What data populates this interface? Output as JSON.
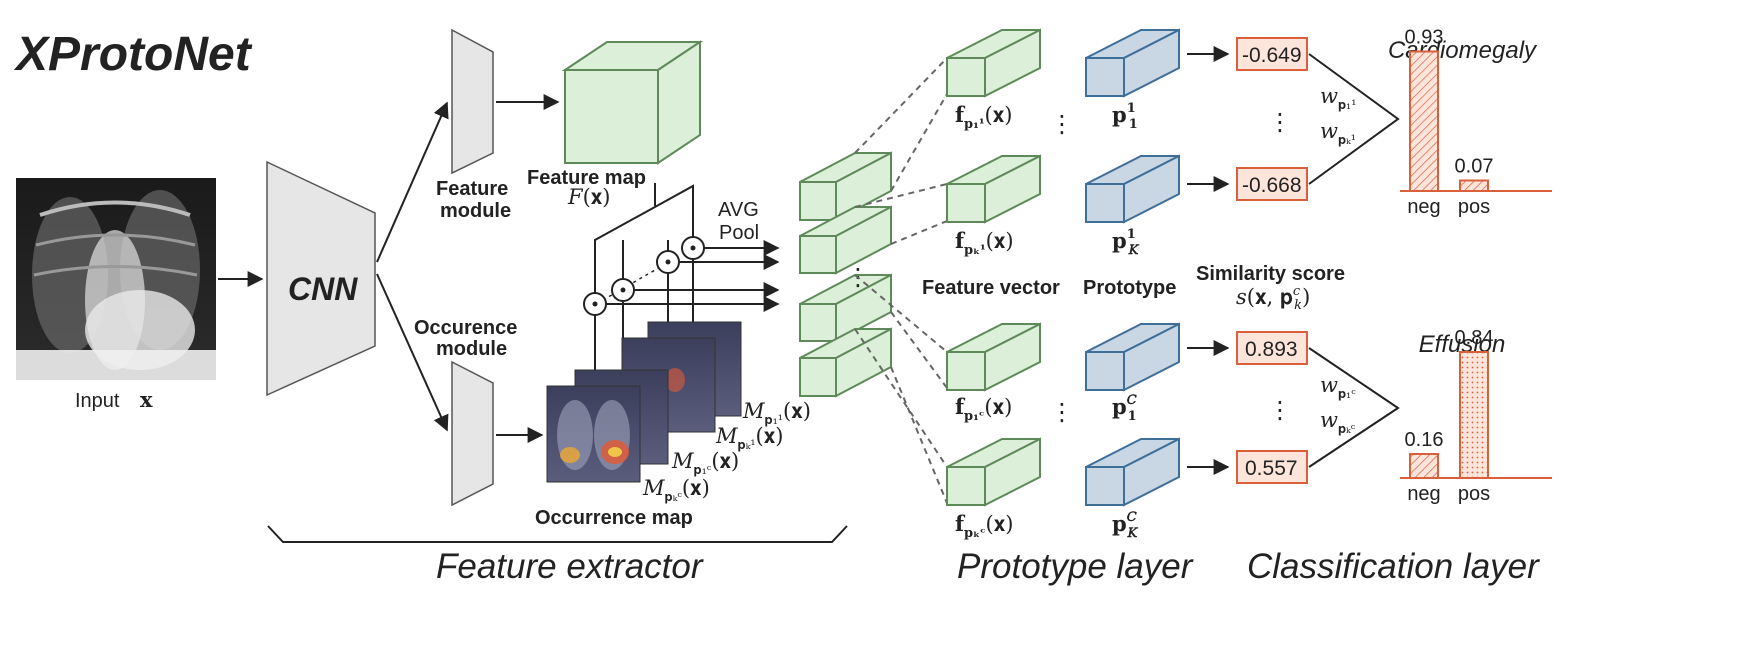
{
  "title": "XProtoNet",
  "input_label": "Input",
  "input_var": "x",
  "cnn_label": "CNN",
  "feature_module": [
    "Feature",
    "module"
  ],
  "occurrence_module": [
    "Occurence",
    "module"
  ],
  "feature_map_label": "Feature map",
  "feature_map_math": "F(x)",
  "avg_pool": [
    "AVG",
    "Pool"
  ],
  "occurrence_map_label": "Occurrence map",
  "occurrence_maps": [
    "p",
    "p",
    "p",
    "p"
  ],
  "feature_vector_label": "Feature vector",
  "prototype_label": "Prototype",
  "similarity_label": "Similarity score",
  "similarity_math": "s(x, p)",
  "scores": [
    "-0.649",
    "-0.668",
    "0.893",
    "0.557"
  ],
  "sections": [
    "Feature extractor",
    "Prototype layer",
    "Classification layer"
  ],
  "colors": {
    "green_fill": "#dcefd8",
    "green_stroke": "#5e8a5a",
    "blue_fill": "#c9d6e4",
    "blue_stroke": "#3e6f99",
    "score_fill": "#fde5dc",
    "score_stroke": "#d9603a",
    "bar_stroke": "#d9603a",
    "module_fill": "#e6e6e6"
  },
  "chart_data": [
    {
      "type": "bar",
      "title": "Cardiomegaly",
      "categories": [
        "neg",
        "pos"
      ],
      "values": [
        0.93,
        0.07
      ],
      "ylim": [
        0,
        1
      ]
    },
    {
      "type": "bar",
      "title": "Effusion",
      "categories": [
        "neg",
        "pos"
      ],
      "values": [
        0.16,
        0.84
      ],
      "ylim": [
        0,
        1
      ]
    }
  ]
}
